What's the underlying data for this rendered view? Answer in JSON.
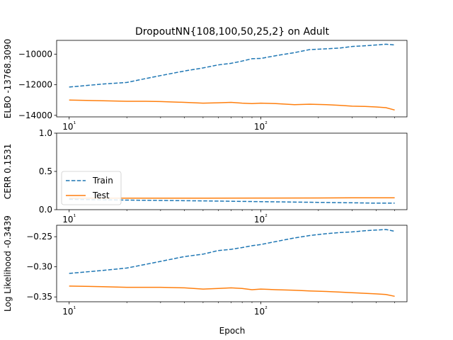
{
  "chart_data": {
    "title": "DropoutNN{108,100,50,25,2} on Adult",
    "xlabel": "Epoch",
    "x_scale": "log",
    "xlim": [
      8.6,
      580
    ],
    "x_tick_values": [
      10,
      100
    ],
    "x_tick_labels": [
      "10¹",
      "10²"
    ],
    "colors": {
      "Train": "#1f77b4",
      "Test": "#ff7f0e"
    },
    "legend": {
      "placement": "middle-left of second panel",
      "entries": [
        "Train",
        "Test"
      ]
    },
    "panels": [
      {
        "type": "line",
        "ylabel": "ELBO -13768.3090",
        "ylim": [
          -14100,
          -9100
        ],
        "y_ticks": [
          -14000,
          -12000,
          -10000
        ],
        "y_tick_labels": [
          "−14000",
          "−12000",
          "−10000"
        ],
        "show_x_tick_labels": true,
        "series": [
          {
            "name": "Train",
            "style": "dashed",
            "x": [
              10,
              15,
              20,
              25,
              30,
              40,
              50,
              60,
              70,
              80,
              90,
              100,
              120,
              150,
              180,
              220,
              260,
              300,
              350,
              400,
              450,
              500
            ],
            "y": [
              -12150,
              -11950,
              -11850,
              -11600,
              -11400,
              -11100,
              -10900,
              -10700,
              -10600,
              -10450,
              -10300,
              -10280,
              -10100,
              -9900,
              -9700,
              -9650,
              -9600,
              -9500,
              -9450,
              -9400,
              -9350,
              -9400
            ]
          },
          {
            "name": "Test",
            "style": "solid",
            "x": [
              10,
              15,
              20,
              25,
              30,
              40,
              50,
              60,
              70,
              80,
              90,
              100,
              120,
              150,
              180,
              220,
              260,
              300,
              350,
              400,
              450,
              500
            ],
            "y": [
              -13000,
              -13050,
              -13080,
              -13080,
              -13100,
              -13150,
              -13200,
              -13180,
              -13150,
              -13200,
              -13230,
              -13200,
              -13230,
              -13300,
              -13270,
              -13300,
              -13350,
              -13400,
              -13420,
              -13450,
              -13500,
              -13650
            ]
          }
        ]
      },
      {
        "type": "line",
        "ylabel": "CERR 0.1531",
        "ylim": [
          0,
          1
        ],
        "y_ticks": [
          0,
          0.5,
          1
        ],
        "y_tick_labels": [
          "0.0",
          "0.5",
          "1.0"
        ],
        "show_x_tick_labels": true,
        "series": [
          {
            "name": "Train",
            "style": "dashed",
            "x": [
              10,
              20,
              50,
              100,
              200,
              300,
              400,
              500
            ],
            "y": [
              0.135,
              0.125,
              0.115,
              0.105,
              0.095,
              0.09,
              0.085,
              0.085
            ]
          },
          {
            "name": "Test",
            "style": "solid",
            "x": [
              10,
              20,
              50,
              100,
              200,
              300,
              400,
              500
            ],
            "y": [
              0.15,
              0.15,
              0.15,
              0.152,
              0.153,
              0.155,
              0.155,
              0.155
            ]
          }
        ]
      },
      {
        "type": "line",
        "ylabel": "Log Likelihood -0.3439",
        "ylim": [
          -0.358,
          -0.231
        ],
        "y_ticks": [
          -0.35,
          -0.3,
          -0.25
        ],
        "y_tick_labels": [
          "−0.35",
          "−0.30",
          "−0.25"
        ],
        "show_x_tick_labels": true,
        "series": [
          {
            "name": "Train",
            "style": "dashed",
            "x": [
              10,
              15,
              20,
              25,
              30,
              40,
              50,
              60,
              70,
              80,
              90,
              100,
              120,
              150,
              180,
              220,
              260,
              300,
              350,
              400,
              450,
              500
            ],
            "y": [
              -0.311,
              -0.306,
              -0.302,
              -0.296,
              -0.291,
              -0.283,
              -0.279,
              -0.273,
              -0.271,
              -0.268,
              -0.265,
              -0.263,
              -0.258,
              -0.252,
              -0.248,
              -0.245,
              -0.243,
              -0.242,
              -0.24,
              -0.239,
              -0.238,
              -0.241
            ]
          },
          {
            "name": "Test",
            "style": "solid",
            "x": [
              10,
              15,
              20,
              25,
              30,
              40,
              50,
              60,
              70,
              80,
              90,
              100,
              120,
              150,
              180,
              220,
              260,
              300,
              350,
              400,
              450,
              500
            ],
            "y": [
              -0.332,
              -0.333,
              -0.334,
              -0.334,
              -0.334,
              -0.335,
              -0.337,
              -0.336,
              -0.335,
              -0.336,
              -0.338,
              -0.337,
              -0.338,
              -0.339,
              -0.34,
              -0.341,
              -0.342,
              -0.343,
              -0.344,
              -0.345,
              -0.346,
              -0.349
            ]
          }
        ]
      }
    ]
  }
}
